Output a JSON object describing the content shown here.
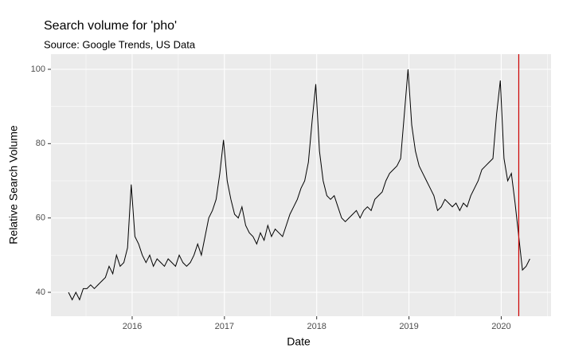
{
  "chart_data": {
    "type": "line",
    "title": "Search volume for 'pho'",
    "subtitle": "Source: Google Trends, US Data",
    "x_label": "Date",
    "y_label": "Relative Search Volume",
    "x": [
      2015.31,
      2015.35,
      2015.39,
      2015.43,
      2015.47,
      2015.51,
      2015.55,
      2015.59,
      2015.63,
      2015.67,
      2015.71,
      2015.75,
      2015.79,
      2015.83,
      2015.87,
      2015.91,
      2015.95,
      2015.99,
      2016.03,
      2016.07,
      2016.11,
      2016.15,
      2016.19,
      2016.23,
      2016.27,
      2016.31,
      2016.35,
      2016.39,
      2016.43,
      2016.47,
      2016.51,
      2016.55,
      2016.59,
      2016.63,
      2016.67,
      2016.71,
      2016.75,
      2016.79,
      2016.83,
      2016.87,
      2016.91,
      2016.95,
      2016.99,
      2017.03,
      2017.07,
      2017.11,
      2017.15,
      2017.19,
      2017.23,
      2017.27,
      2017.31,
      2017.35,
      2017.39,
      2017.43,
      2017.47,
      2017.51,
      2017.55,
      2017.59,
      2017.63,
      2017.67,
      2017.71,
      2017.75,
      2017.79,
      2017.83,
      2017.87,
      2017.91,
      2017.95,
      2017.99,
      2018.03,
      2018.07,
      2018.11,
      2018.15,
      2018.19,
      2018.23,
      2018.27,
      2018.31,
      2018.35,
      2018.39,
      2018.43,
      2018.47,
      2018.51,
      2018.55,
      2018.59,
      2018.63,
      2018.67,
      2018.71,
      2018.75,
      2018.79,
      2018.83,
      2018.87,
      2018.91,
      2018.95,
      2018.99,
      2019.03,
      2019.07,
      2019.11,
      2019.15,
      2019.19,
      2019.23,
      2019.27,
      2019.31,
      2019.35,
      2019.39,
      2019.43,
      2019.47,
      2019.51,
      2019.55,
      2019.59,
      2019.63,
      2019.67,
      2019.71,
      2019.75,
      2019.79,
      2019.83,
      2019.87,
      2019.91,
      2019.95,
      2019.99,
      2020.03,
      2020.07,
      2020.11,
      2020.15,
      2020.19,
      2020.23,
      2020.27,
      2020.31
    ],
    "series": [
      {
        "name": "pho",
        "color": "#000000",
        "values": [
          40,
          38,
          40,
          38,
          41,
          41,
          42,
          41,
          42,
          43,
          44,
          47,
          45,
          50,
          47,
          48,
          52,
          69,
          55,
          53,
          50,
          48,
          50,
          47,
          49,
          48,
          47,
          49,
          48,
          47,
          50,
          48,
          47,
          48,
          50,
          53,
          50,
          55,
          60,
          62,
          65,
          72,
          81,
          70,
          65,
          61,
          60,
          63,
          58,
          56,
          55,
          53,
          56,
          54,
          58,
          55,
          57,
          56,
          55,
          58,
          61,
          63,
          65,
          68,
          70,
          75,
          86,
          96,
          78,
          70,
          66,
          65,
          66,
          63,
          60,
          59,
          60,
          61,
          62,
          60,
          62,
          63,
          62,
          65,
          66,
          67,
          70,
          72,
          73,
          74,
          76,
          88,
          100,
          85,
          78,
          74,
          72,
          70,
          68,
          66,
          62,
          63,
          65,
          64,
          63,
          64,
          62,
          64,
          63,
          66,
          68,
          70,
          73,
          74,
          75,
          76,
          88,
          97,
          76,
          70,
          72,
          64,
          55,
          46,
          47,
          49
        ]
      }
    ],
    "vline": {
      "x": 2020.19,
      "color": "#cc0000"
    },
    "xlim": [
      2015.12,
      2020.54
    ],
    "xticks": [
      2016,
      2017,
      2018,
      2019,
      2020
    ],
    "ylim": [
      33.57,
      104.07
    ],
    "yticks": [
      40,
      60,
      80,
      100
    ],
    "grid": true
  }
}
